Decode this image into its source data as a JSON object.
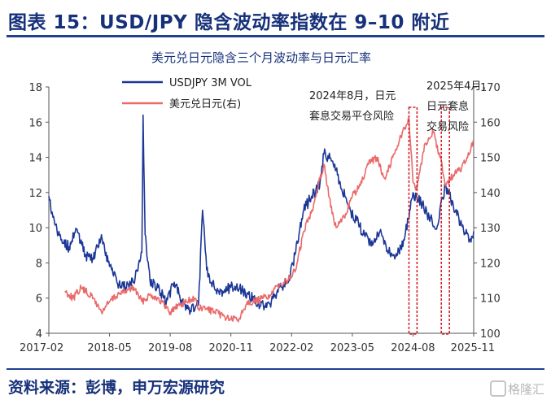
{
  "figure_title": "图表 15：USD/JPY 隐含波动率指数在 9–10 附近",
  "source": "资料来源：彭博，申万宏源研究",
  "watermark": "格隆汇",
  "colors": {
    "vol": "#1c3796",
    "fx": "#ea6a6a",
    "annotation_box": "#d0202a",
    "title": "#16317a"
  },
  "chart_data": {
    "type": "line",
    "title": "美元兑日元隐含三个月波动率与日元汇率",
    "x_ticks": [
      "2017-02",
      "2018-05",
      "2019-08",
      "2020-11",
      "2022-02",
      "2023-05",
      "2024-08",
      "2025-11"
    ],
    "x_range": [
      "2017-02",
      "2025-11"
    ],
    "y_left": {
      "range": [
        4,
        18
      ],
      "ticks": [
        4,
        6,
        8,
        10,
        12,
        14,
        16,
        18
      ]
    },
    "y_right": {
      "range": [
        100,
        170
      ],
      "ticks": [
        100,
        110,
        120,
        130,
        140,
        150,
        160,
        170
      ]
    },
    "legend": {
      "position": "top-left",
      "entries": [
        "USDJPY 3M VOL",
        "美元兑日元(右)"
      ]
    },
    "series": [
      {
        "name": "USDJPY 3M VOL",
        "axis": "left",
        "points": [
          [
            "2017-02",
            11.8
          ],
          [
            "2017-03",
            10.6
          ],
          [
            "2017-05",
            9.3
          ],
          [
            "2017-07",
            8.9
          ],
          [
            "2017-09",
            9.9
          ],
          [
            "2017-11",
            8.4
          ],
          [
            "2018-01",
            8.2
          ],
          [
            "2018-03",
            9.6
          ],
          [
            "2018-05",
            7.8
          ],
          [
            "2018-07",
            6.8
          ],
          [
            "2018-09",
            6.6
          ],
          [
            "2018-11",
            6.9
          ],
          [
            "2019-01",
            8.6
          ],
          [
            "2019-01-10",
            16.4
          ],
          [
            "2019-01-25",
            9.6
          ],
          [
            "2019-03",
            7.0
          ],
          [
            "2019-05",
            6.6
          ],
          [
            "2019-07",
            5.7
          ],
          [
            "2019-09",
            6.9
          ],
          [
            "2019-11",
            5.8
          ],
          [
            "2020-01",
            5.3
          ],
          [
            "2020-03",
            5.6
          ],
          [
            "2020-04",
            11.0
          ],
          [
            "2020-05",
            7.6
          ],
          [
            "2020-07",
            6.5
          ],
          [
            "2020-09",
            6.4
          ],
          [
            "2020-11",
            6.6
          ],
          [
            "2021-01",
            6.5
          ],
          [
            "2021-03",
            6.3
          ],
          [
            "2021-05",
            5.8
          ],
          [
            "2021-07",
            5.6
          ],
          [
            "2021-09",
            5.8
          ],
          [
            "2021-11",
            6.6
          ],
          [
            "2022-01",
            6.9
          ],
          [
            "2022-03",
            8.6
          ],
          [
            "2022-05",
            11.0
          ],
          [
            "2022-07",
            11.8
          ],
          [
            "2022-09",
            12.5
          ],
          [
            "2022-10",
            14.2
          ],
          [
            "2022-12",
            13.8
          ],
          [
            "2023-02",
            12.6
          ],
          [
            "2023-04",
            11.2
          ],
          [
            "2023-06",
            10.4
          ],
          [
            "2023-08",
            9.6
          ],
          [
            "2023-10",
            9.0
          ],
          [
            "2023-12",
            9.9
          ],
          [
            "2024-02",
            8.6
          ],
          [
            "2024-04",
            8.4
          ],
          [
            "2024-06",
            9.5
          ],
          [
            "2024-08",
            12.0
          ],
          [
            "2024-10",
            11.4
          ],
          [
            "2024-12",
            10.6
          ],
          [
            "2025-02",
            10.1
          ],
          [
            "2025-04",
            12.4
          ],
          [
            "2025-06",
            11.2
          ],
          [
            "2025-08",
            10.2
          ],
          [
            "2025-10",
            9.3
          ],
          [
            "2025-11",
            9.8
          ]
        ]
      },
      {
        "name": "美元兑日元(右)",
        "axis": "right",
        "points": [
          [
            "2017-06",
            112
          ],
          [
            "2017-08",
            110
          ],
          [
            "2017-10",
            113
          ],
          [
            "2018-01",
            110
          ],
          [
            "2018-03",
            106
          ],
          [
            "2018-05",
            109
          ],
          [
            "2018-07",
            111
          ],
          [
            "2018-09",
            112
          ],
          [
            "2018-11",
            113
          ],
          [
            "2019-01",
            109
          ],
          [
            "2019-03",
            111
          ],
          [
            "2019-05",
            110
          ],
          [
            "2019-08",
            106
          ],
          [
            "2019-10",
            108
          ],
          [
            "2019-12",
            109
          ],
          [
            "2020-02",
            110
          ],
          [
            "2020-03",
            107
          ],
          [
            "2020-05",
            107
          ],
          [
            "2020-07",
            106
          ],
          [
            "2020-09",
            105
          ],
          [
            "2020-11",
            104
          ],
          [
            "2021-01",
            104
          ],
          [
            "2021-03",
            109
          ],
          [
            "2021-05",
            109
          ],
          [
            "2021-07",
            110
          ],
          [
            "2021-09",
            111
          ],
          [
            "2021-11",
            114
          ],
          [
            "2022-01",
            115
          ],
          [
            "2022-03",
            118
          ],
          [
            "2022-05",
            129
          ],
          [
            "2022-07",
            135
          ],
          [
            "2022-09",
            144
          ],
          [
            "2022-10",
            148
          ],
          [
            "2022-12",
            134
          ],
          [
            "2023-01",
            130
          ],
          [
            "2023-03",
            133
          ],
          [
            "2023-05",
            139
          ],
          [
            "2023-07",
            142
          ],
          [
            "2023-09",
            148
          ],
          [
            "2023-11",
            150
          ],
          [
            "2024-01",
            144
          ],
          [
            "2024-03",
            150
          ],
          [
            "2024-05",
            156
          ],
          [
            "2024-07",
            161
          ],
          [
            "2024-08",
            143
          ],
          [
            "2024-09",
            141
          ],
          [
            "2024-11",
            154
          ],
          [
            "2025-01",
            157
          ],
          [
            "2025-03",
            149
          ],
          [
            "2025-04",
            142
          ],
          [
            "2025-06",
            145
          ],
          [
            "2025-08",
            147
          ],
          [
            "2025-10",
            151
          ],
          [
            "2025-11",
            155
          ]
        ]
      }
    ],
    "annotations": [
      {
        "lines": [
          "2024年8月，日元",
          "套息交易平仓风险"
        ],
        "period": [
          "2024-07",
          "2024-09"
        ]
      },
      {
        "lines": [
          "2025年4月，",
          "日元套息",
          "交易风险"
        ],
        "period": [
          "2025-03",
          "2025-05"
        ]
      }
    ]
  }
}
